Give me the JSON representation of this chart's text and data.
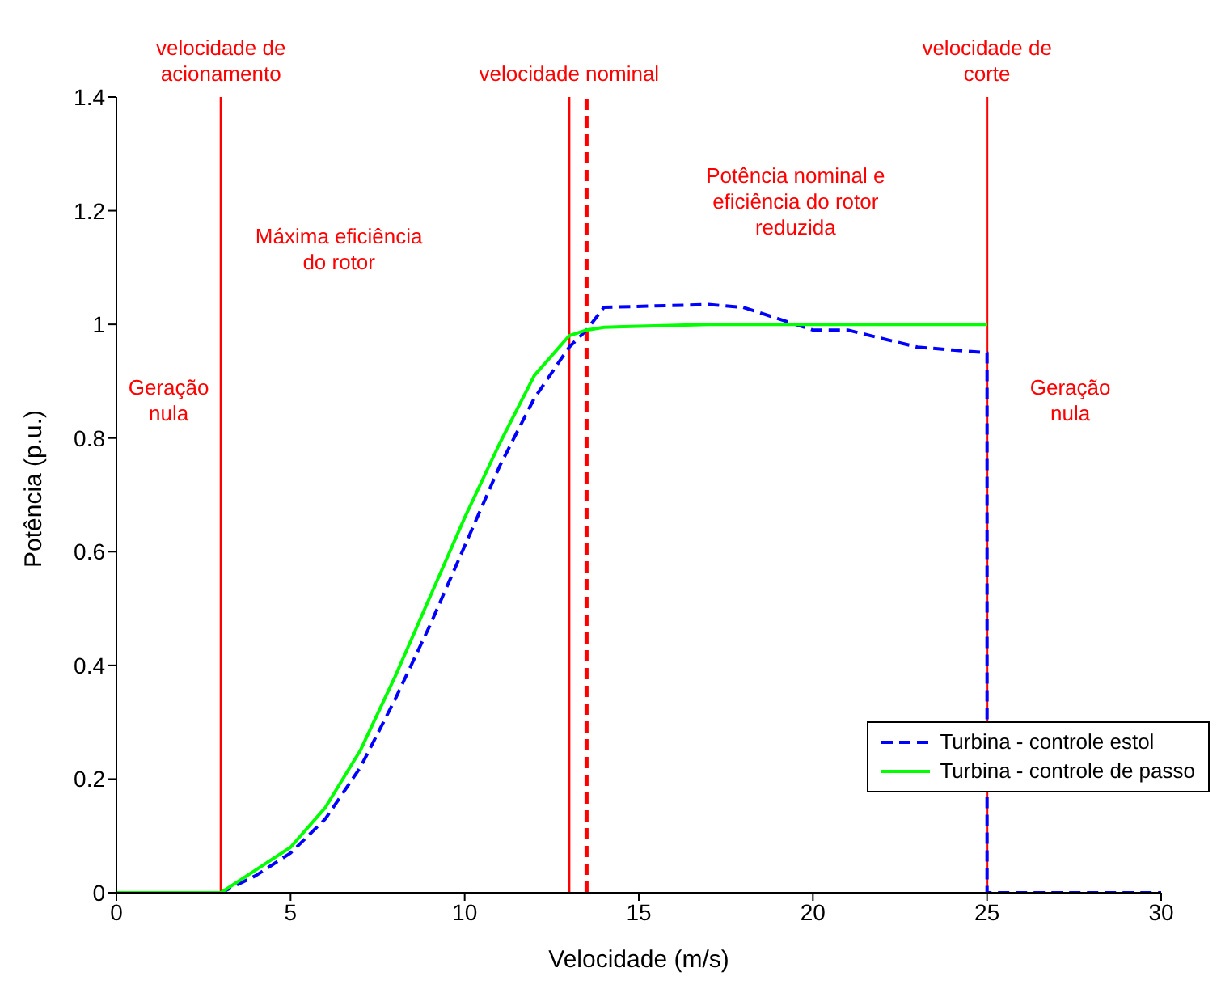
{
  "chart_data": {
    "type": "line",
    "xlabel": "Velocidade (m/s)",
    "ylabel": "Potência (p.u.)",
    "xlim": [
      0,
      30
    ],
    "xticks": [
      0,
      5,
      10,
      15,
      20,
      25,
      30
    ],
    "ylim": [
      0,
      1.4
    ],
    "yticks": [
      0,
      0.2,
      0.4,
      0.6,
      0.8,
      1,
      1.2,
      1.4
    ],
    "grid": false,
    "legend": "bottom right",
    "marker": "none",
    "series": [
      {
        "name": "Turbina - controle estol",
        "color": "#0000ff",
        "line_style": "dashed",
        "x": [
          3,
          4,
          5,
          6,
          7,
          8,
          9,
          10,
          11,
          12,
          13,
          13.5,
          14,
          17,
          18,
          19,
          20,
          21,
          22,
          23,
          24,
          25,
          25,
          30
        ],
        "values": [
          0,
          0.03,
          0.07,
          0.13,
          0.22,
          0.34,
          0.47,
          0.61,
          0.75,
          0.87,
          0.96,
          0.99,
          1.03,
          1.035,
          1.03,
          1.01,
          0.99,
          0.99,
          0.975,
          0.96,
          0.955,
          0.95,
          0,
          0
        ]
      },
      {
        "name": "Turbina - controle de passo",
        "color": "#00ff00",
        "line_style": "solid",
        "x": [
          0,
          3,
          4,
          5,
          6,
          7,
          8,
          9,
          10,
          11,
          12,
          13,
          13.5,
          14,
          17,
          25
        ],
        "values": [
          0,
          0,
          0.04,
          0.08,
          0.15,
          0.25,
          0.38,
          0.52,
          0.66,
          0.79,
          0.91,
          0.98,
          0.99,
          0.995,
          1,
          1
        ]
      }
    ],
    "ref_lines": [
      {
        "axis": "x",
        "value": 3,
        "label": "velocidade de\nacionamento",
        "color": "#ff0000",
        "line_style": "solid"
      },
      {
        "axis": "x",
        "value": 13,
        "label": "velocidade nominal",
        "color": "#ff0000",
        "line_style": "solid"
      },
      {
        "axis": "x",
        "value": 13.5,
        "label": null,
        "color": "#ff0000",
        "line_style": "dashed"
      },
      {
        "axis": "x",
        "value": 25,
        "label": "velocidade de\ncorte",
        "color": "#ff0000",
        "line_style": "solid"
      }
    ],
    "annotations": [
      "Geração\nnula",
      "Máxima eficiência\ndo rotor",
      "Potência nominal e\neficiência do rotor\nreduzida",
      "Geração\nnula"
    ]
  }
}
